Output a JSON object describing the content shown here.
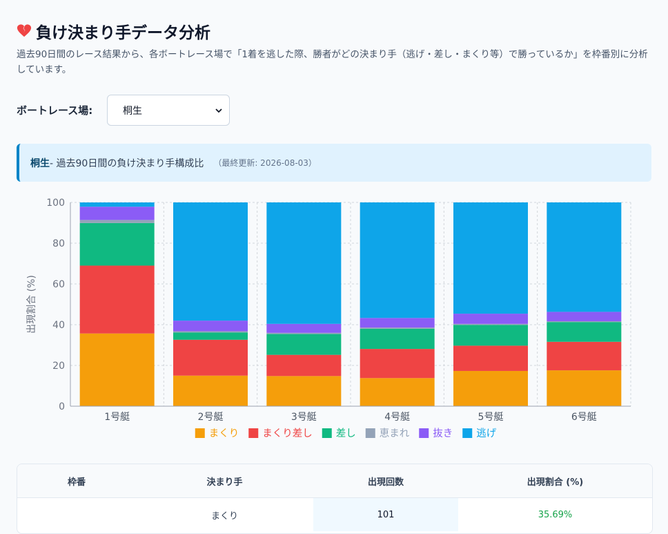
{
  "page": {
    "title": "負け決まり手データ分析",
    "description": "過去90日間のレース結果から、各ボートレース場で「1着を逃した際、勝者がどの決まり手（逃げ・差し・まくり等）で勝っているか」を枠番別に分析しています。"
  },
  "selector": {
    "label": "ボートレース場:",
    "selected": "桐生"
  },
  "info": {
    "venue": "桐生",
    "summary": " - 過去90日間の負け決まり手構成比",
    "updated": "（最終更新: 2026-08-03）"
  },
  "colors": {
    "makuri": "#f59e0b",
    "makurizashi": "#ef4444",
    "sashi": "#10b981",
    "megumare": "#94a3b8",
    "nuki": "#8b5cf6",
    "nige": "#0ea5e9"
  },
  "chart_data": {
    "type": "bar",
    "stacked": true,
    "categories": [
      "1号艇",
      "2号艇",
      "3号艇",
      "4号艇",
      "5号艇",
      "6号艇"
    ],
    "ylabel": "出現割合 (%)",
    "ylim": [
      0,
      100
    ],
    "yticks": [
      0,
      20,
      40,
      60,
      80,
      100
    ],
    "grid": true,
    "legend": "bottom",
    "series": [
      {
        "name": "まくり",
        "color": "#f59e0b",
        "values": [
          35.69,
          15.0,
          14.8,
          13.8,
          17.3,
          17.6
        ]
      },
      {
        "name": "まくり差し",
        "color": "#ef4444",
        "values": [
          33.3,
          17.6,
          10.4,
          14.3,
          12.4,
          14.0
        ]
      },
      {
        "name": "差し",
        "color": "#10b981",
        "values": [
          20.9,
          3.6,
          10.2,
          9.9,
          10.2,
          9.7
        ]
      },
      {
        "name": "恵まれ",
        "color": "#94a3b8",
        "values": [
          1.5,
          0.6,
          0.6,
          0.6,
          0.5,
          0.4
        ]
      },
      {
        "name": "抜き",
        "color": "#8b5cf6",
        "values": [
          6.5,
          5.2,
          4.4,
          4.7,
          5.0,
          4.6
        ]
      },
      {
        "name": "逃げ",
        "color": "#0ea5e9",
        "values": [
          2.1,
          58.0,
          59.6,
          56.7,
          54.6,
          53.7
        ]
      }
    ]
  },
  "table": {
    "headers": [
      "枠番",
      "決まり手",
      "出現回数",
      "出現割合 (%)"
    ],
    "rows": [
      {
        "waku": "",
        "kimarite": "まくり",
        "count": "101",
        "pct": "35.69%"
      }
    ]
  }
}
